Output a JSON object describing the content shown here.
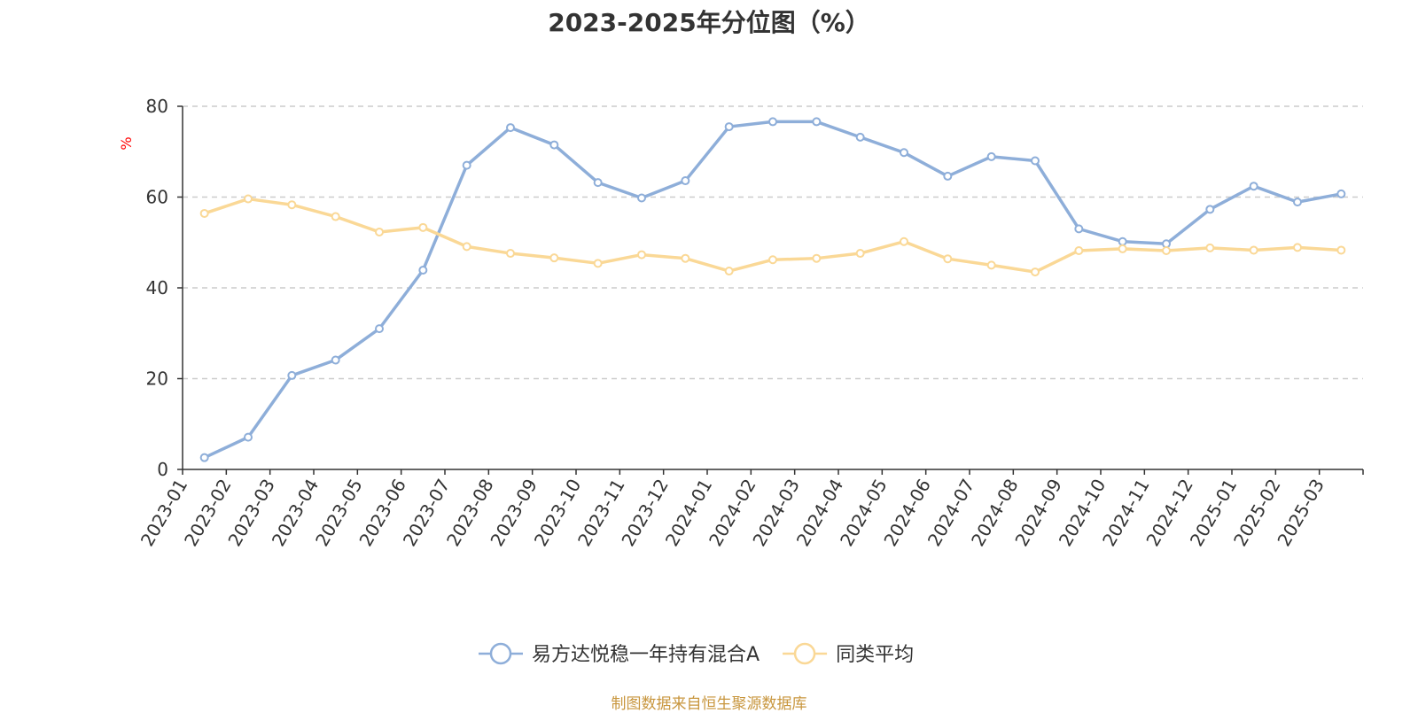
{
  "chart_data": {
    "type": "line",
    "title": "2023-2025年分位图（%）",
    "ylabel": "%",
    "ylim": [
      0,
      80
    ],
    "yticks": [
      0,
      20,
      40,
      60,
      80
    ],
    "grid": true,
    "legend_position": "bottom",
    "categories": [
      "2023-01",
      "2023-02",
      "2023-03",
      "2023-04",
      "2023-05",
      "2023-06",
      "2023-07",
      "2023-08",
      "2023-09",
      "2023-10",
      "2023-11",
      "2023-12",
      "2024-01",
      "2024-02",
      "2024-03",
      "2024-04",
      "2024-05",
      "2024-06",
      "2024-07",
      "2024-08",
      "2024-09",
      "2024-10",
      "2024-11",
      "2024-12",
      "2025-01",
      "2025-02",
      "2025-03"
    ],
    "series": [
      {
        "name": "易方达悦稳一年持有混合A",
        "color": "#8eaed9",
        "values": [
          2.6,
          7.1,
          20.7,
          24.1,
          31.0,
          43.9,
          67.0,
          75.3,
          71.5,
          63.2,
          59.8,
          63.6,
          75.5,
          76.6,
          76.6,
          73.2,
          69.8,
          64.6,
          68.9,
          68.0,
          53.0,
          50.2,
          49.7,
          57.3,
          62.4,
          58.9,
          60.7
        ]
      },
      {
        "name": "同类平均",
        "color": "#fad896",
        "values": [
          56.4,
          59.6,
          58.3,
          55.7,
          52.3,
          53.3,
          49.1,
          47.6,
          46.6,
          45.4,
          47.3,
          46.5,
          43.7,
          46.2,
          46.5,
          47.6,
          50.2,
          46.4,
          45.0,
          43.5,
          48.2,
          48.6,
          48.2,
          48.8,
          48.3,
          48.9,
          48.3
        ]
      }
    ]
  },
  "source_text": "制图数据来自恒生聚源数据库"
}
